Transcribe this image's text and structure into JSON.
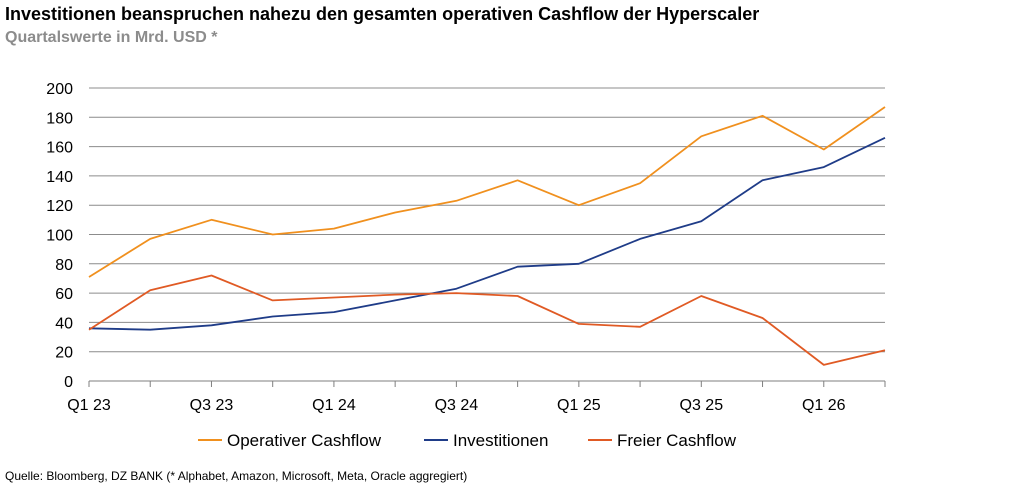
{
  "header": {
    "title": "Investitionen beanspruchen nahezu den gesamten operativen Cashflow der Hyperscaler",
    "subtitle": "Quartalswerte in Mrd. USD *"
  },
  "footer": {
    "source": "Quelle: Bloomberg, DZ BANK (* Alphabet, Amazon, Microsoft, Meta, Oracle aggregiert)"
  },
  "chart_data": {
    "type": "line",
    "title": "Investitionen beanspruchen nahezu den gesamten operativen Cashflow der Hyperscaler",
    "subtitle": "Quartalswerte in Mrd. USD *",
    "x": [
      "Q1 23",
      "Q2 23",
      "Q3 23",
      "Q4 23",
      "Q1 24",
      "Q2 24",
      "Q3 24",
      "Q4 24",
      "Q1 25",
      "Q2 25",
      "Q3 25",
      "Q4 25",
      "Q1 26",
      "Q2 26"
    ],
    "x_tick_labels": [
      "Q1 23",
      "Q3 23",
      "Q1 24",
      "Q3 24",
      "Q1 25",
      "Q3 25",
      "Q1 26"
    ],
    "ylim": [
      0,
      200
    ],
    "y_ticks": [
      0,
      20,
      40,
      60,
      80,
      100,
      120,
      140,
      160,
      180,
      200
    ],
    "grid": true,
    "legend_position": "bottom",
    "series": [
      {
        "name": "Operativer Cashflow",
        "color": "#f0901e",
        "values": [
          71,
          97,
          110,
          100,
          104,
          115,
          123,
          137,
          120,
          135,
          167,
          181,
          158,
          187
        ]
      },
      {
        "name": "Investitionen",
        "color": "#1f3c88",
        "values": [
          36,
          35,
          38,
          44,
          47,
          55,
          63,
          78,
          80,
          97,
          109,
          137,
          146,
          166
        ]
      },
      {
        "name": "Freier Cashflow",
        "color": "#e05a24",
        "values": [
          35,
          62,
          72,
          55,
          57,
          59,
          60,
          58,
          39,
          37,
          58,
          43,
          11,
          21
        ]
      }
    ]
  }
}
